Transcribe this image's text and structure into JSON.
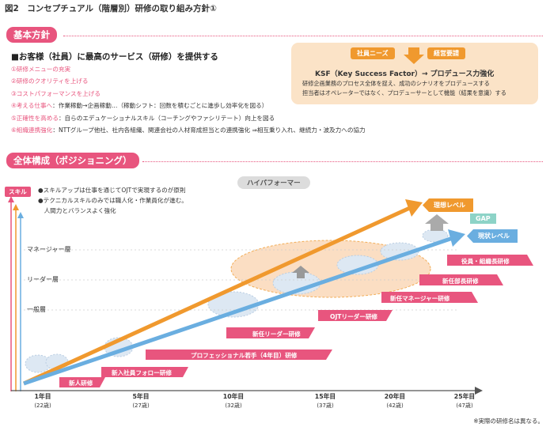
{
  "figure_title": "図2　コンセプチュアル（階層別）研修の取り組み方針①",
  "policy": {
    "header": "基本方針",
    "main_line": "■お客様（社員）に最高のサービス（研修）を提供する",
    "points": [
      {
        "label": "①研修メニューの充実",
        "detail": ""
      },
      {
        "label": "②研修のクオリティを上げる",
        "detail": ""
      },
      {
        "label": "③コストパフォーマンスを上げる",
        "detail": ""
      },
      {
        "label": "④考える仕事へ",
        "detail": "：作業稼動→企画稼動…（稼動シフト：回数を積むごとに進歩し効率化を図る）"
      },
      {
        "label": "⑤正確性を高める",
        "detail": "：自らのエデュケーショナルスキル（コーチングやファシリテート）向上を図る"
      },
      {
        "label": "⑥組織連携強化",
        "detail": "：NTTグループ他社、社内各組織、関連会社の人材育成担当との連携強化 ⇒相互乗り入れ、継続力・波及力への協力"
      }
    ],
    "ksf": {
      "needs": "社員ニーズ",
      "requests": "経営要請",
      "title": "KSF（Key Success Factor）→ プロデュース力強化",
      "line1": "研修企画業務のプロセス全体を捉え、成功のシナリオをプロデュースする",
      "line2": "担当者はオペレーターではなく、プロデューサーとして機能（結果を意識）する"
    }
  },
  "structure": {
    "header": "全体構成（ポジショニング）",
    "skill_label": "スキル",
    "notes": [
      "●スキルアップは仕事を通じてOJTで実現するのが原則",
      "●テクニカルスキルのみでは職人化・作業員化が進む。",
      "　人間力とバランスよく強化"
    ],
    "levels": [
      "マネージャー層",
      "リーダー層",
      "一般層"
    ],
    "high_performer": "ハイパフォーマー",
    "ideal_level": "理想レベル",
    "current_level": "現状レベル",
    "gap": "GAP",
    "trainings": [
      "新人研修",
      "新入社員フォロー研修",
      "プロフェッショナル若手（4年目）研修",
      "新任リーダー研修",
      "OJTリーダー研修",
      "新任マネージャー研修",
      "新任部長研修",
      "役員・組織長研修"
    ],
    "x_axis": [
      {
        "year": "1年目",
        "age": "(22歳)"
      },
      {
        "year": "5年目",
        "age": "(27歳)"
      },
      {
        "year": "10年目",
        "age": "(32歳)"
      },
      {
        "year": "15年目",
        "age": "(37歳)"
      },
      {
        "year": "20年目",
        "age": "(42歳)"
      },
      {
        "year": "25年目",
        "age": "(47歳)"
      }
    ]
  },
  "footnote": "※実際の研修名は異なる。",
  "colors": {
    "pink": "#e8557e",
    "orange": "#f0992e",
    "blue": "#6aaee0",
    "gray": "#dcdcdc"
  }
}
